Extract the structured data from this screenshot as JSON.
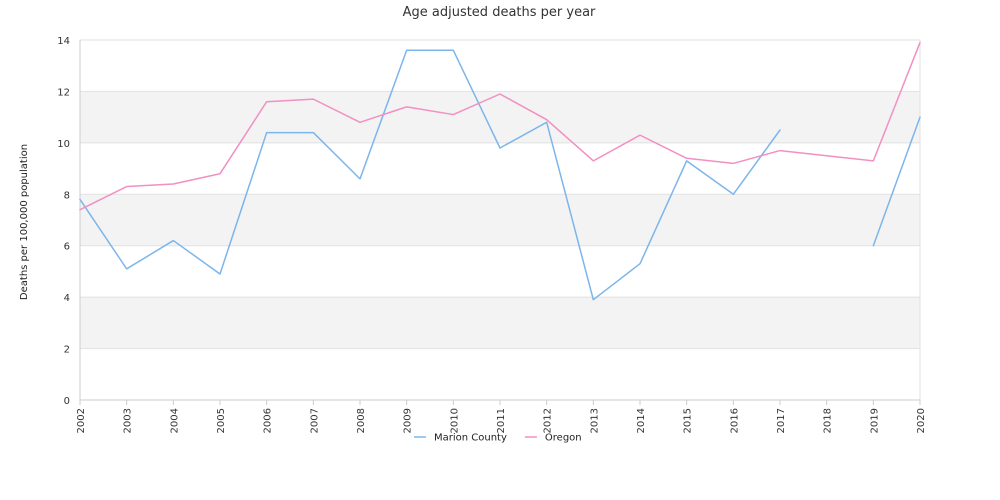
{
  "chart_data": {
    "type": "line",
    "title": "Age adjusted deaths per year",
    "xlabel": "",
    "ylabel": "Deaths per 100,000 population",
    "x": [
      "2002",
      "2003",
      "2004",
      "2005",
      "2006",
      "2007",
      "2008",
      "2009",
      "2010",
      "2011",
      "2012",
      "2013",
      "2014",
      "2015",
      "2016",
      "2017",
      "2018",
      "2019",
      "2020"
    ],
    "ylim": [
      0,
      14
    ],
    "yticks": [
      0,
      2,
      4,
      6,
      8,
      10,
      12,
      14
    ],
    "grid": true,
    "legend_position": "bottom",
    "series": [
      {
        "name": "Marion County",
        "color": "#7cb5ec",
        "values": [
          7.8,
          5.1,
          6.2,
          4.9,
          10.4,
          10.4,
          8.6,
          13.6,
          13.6,
          9.8,
          10.8,
          3.9,
          5.3,
          9.3,
          8.0,
          10.5,
          null,
          6.0,
          11.0
        ]
      },
      {
        "name": "Oregon",
        "color": "#f28fc3",
        "values": [
          7.4,
          8.3,
          8.4,
          8.8,
          11.6,
          11.7,
          10.8,
          11.4,
          11.1,
          11.9,
          10.9,
          9.3,
          10.3,
          9.4,
          9.2,
          9.7,
          9.5,
          9.3,
          13.9
        ]
      }
    ]
  }
}
